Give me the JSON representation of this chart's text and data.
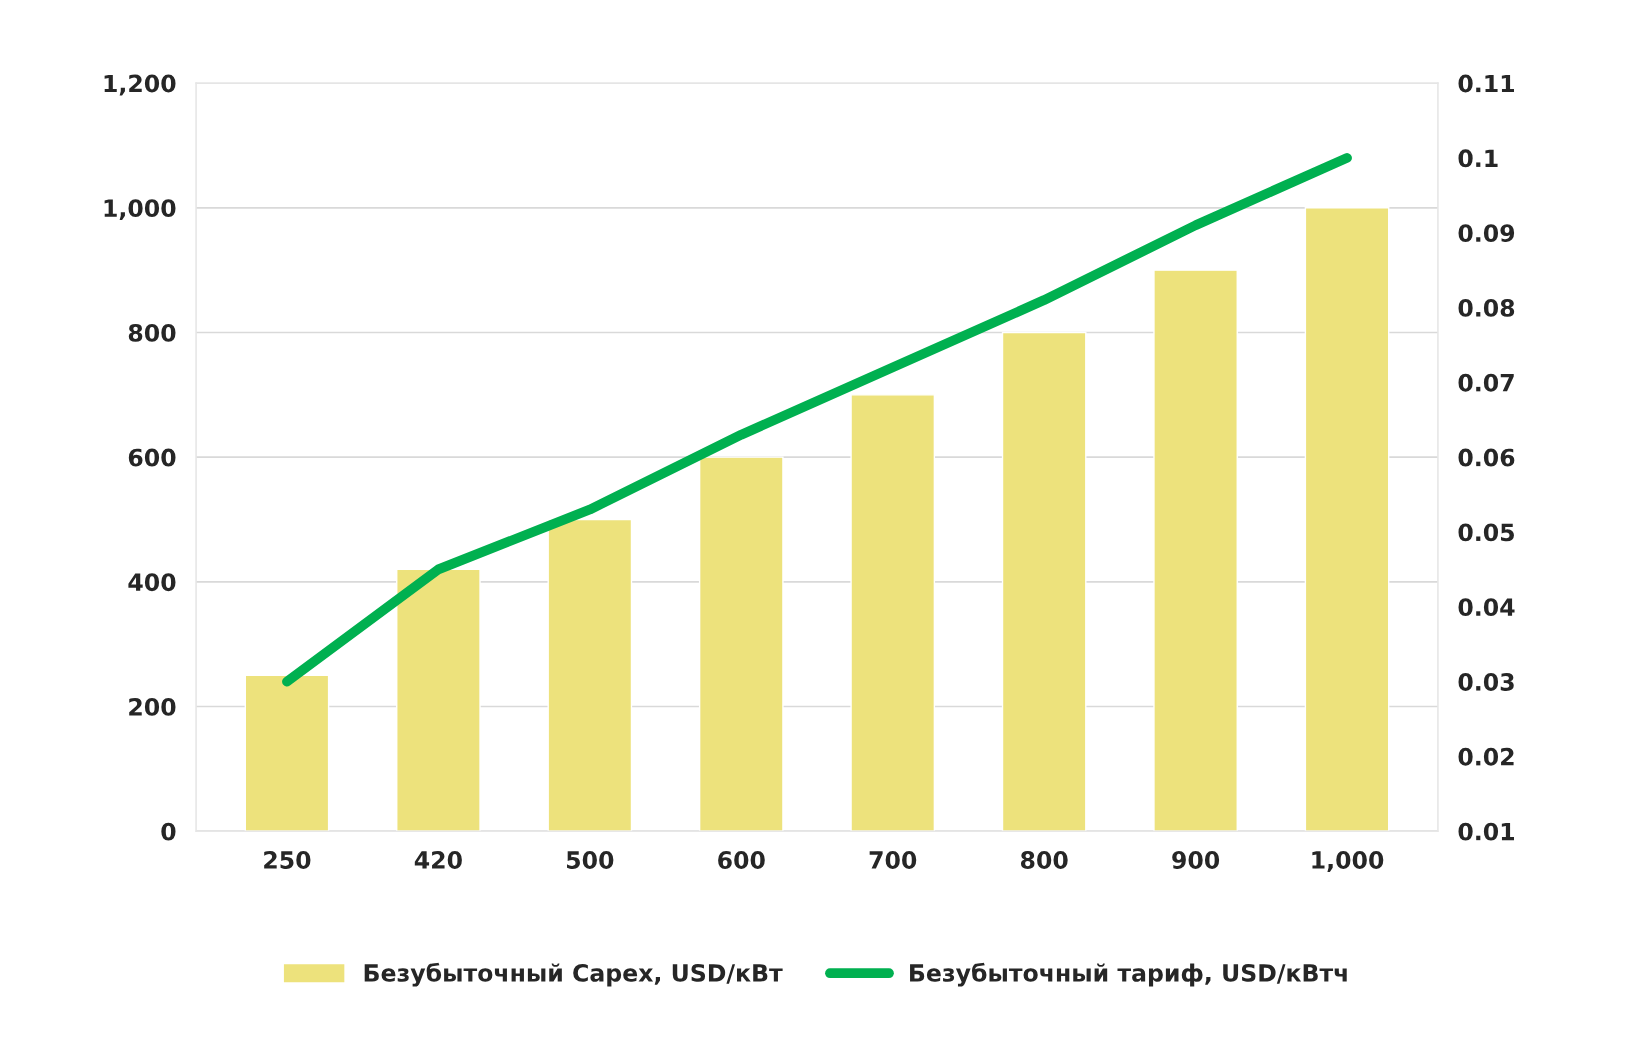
{
  "chart_data": {
    "type": "bar",
    "categories": [
      "250",
      "420",
      "500",
      "600",
      "700",
      "800",
      "900",
      "1,000"
    ],
    "series": [
      {
        "name": "Безубыточный Capex, USD/кВт",
        "color": "#ede27c",
        "values": [
          250,
          420,
          500,
          600,
          700,
          800,
          900,
          1000
        ]
      },
      {
        "name": "Безубыточный тариф, USD/кВтч",
        "type": "line",
        "axis": "y2",
        "color": "#00b050",
        "values": [
          0.03,
          0.045,
          0.053,
          0.063,
          0.072,
          0.081,
          0.091,
          0.1
        ]
      }
    ],
    "ylim": [
      0,
      1200
    ],
    "yticks": [
      0,
      200,
      400,
      600,
      800,
      {
        "value": 1000,
        "label": "1,000"
      },
      {
        "value": 1200,
        "label": "1,200"
      }
    ],
    "y2lim": [
      0.01,
      0.11
    ],
    "y2ticks": [
      0.01,
      0.02,
      0.03,
      0.04,
      0.05,
      0.06,
      0.07,
      0.08,
      0.09,
      0.1,
      0.11
    ],
    "grid": "y",
    "legend": "bottom",
    "marker": "none",
    "line_style": "solid"
  }
}
